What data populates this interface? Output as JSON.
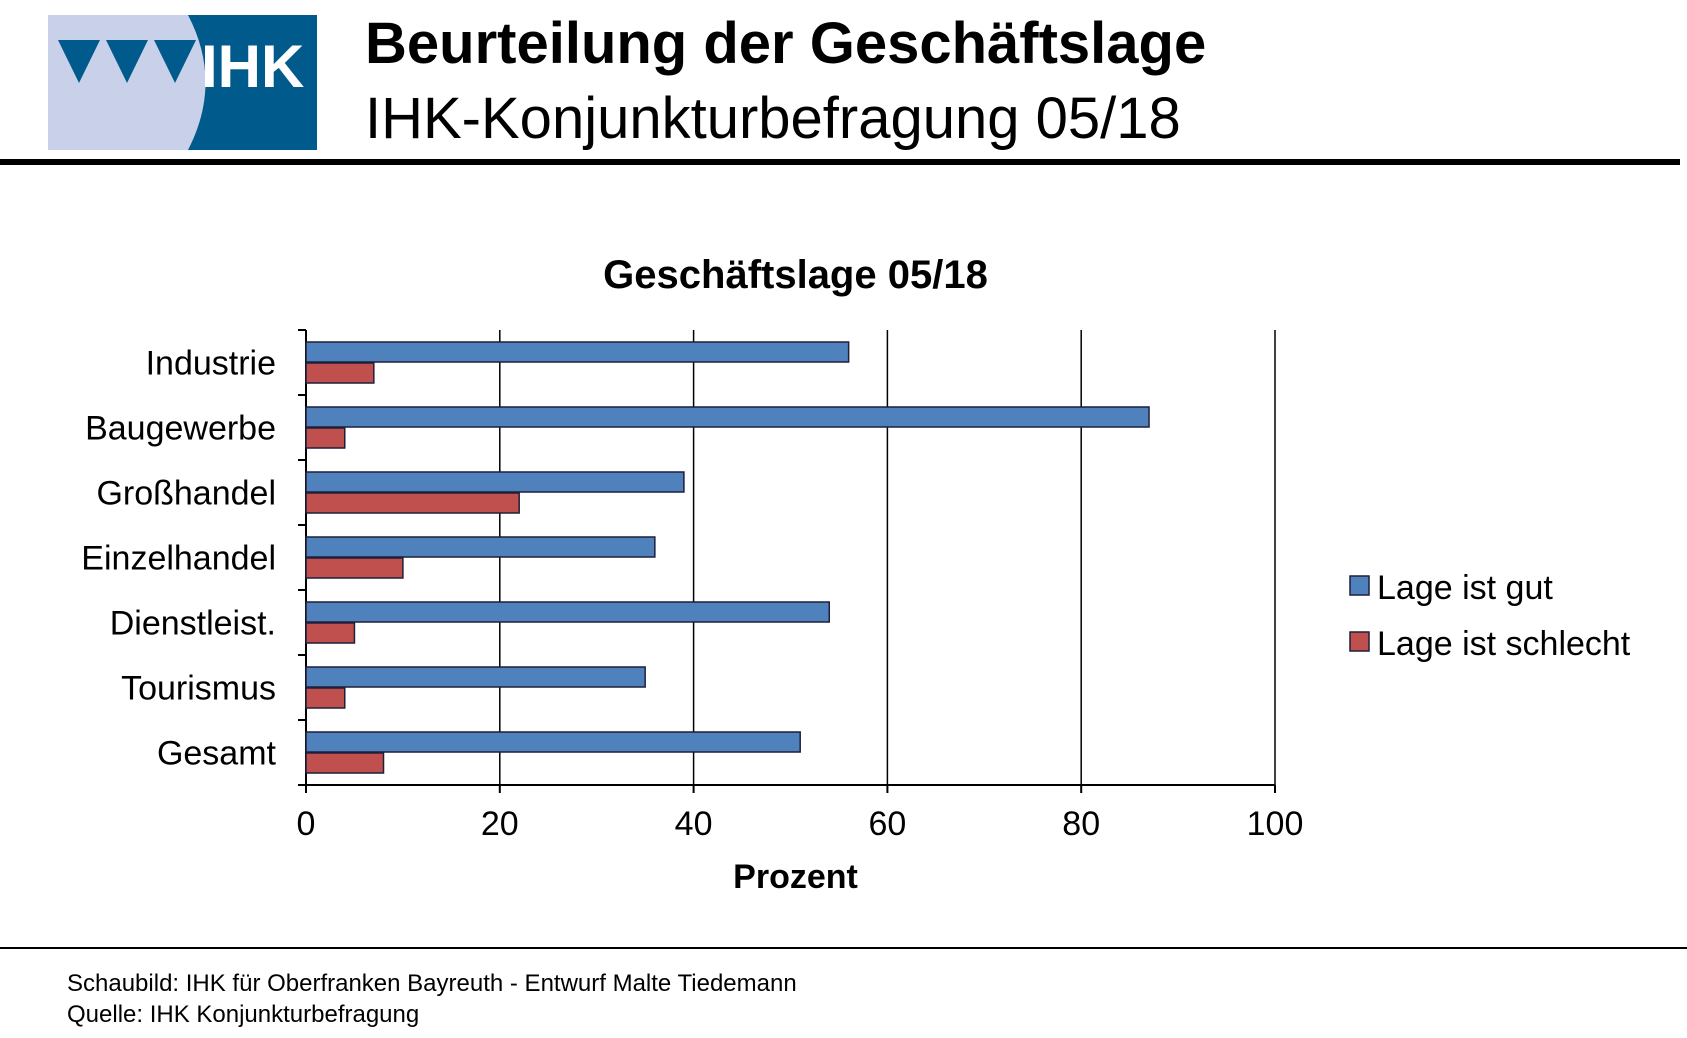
{
  "header": {
    "logo_text": "IHK",
    "title": "Beurteilung der Geschäftslage",
    "subtitle": "IHK-Konjunkturbefragung 05/18"
  },
  "colors": {
    "logo_light": "#c9d1ea",
    "logo_dark": "#005a8c",
    "series_gut": "#4f81bd",
    "series_schlecht": "#c0504d"
  },
  "chart_data": {
    "type": "bar",
    "orientation": "horizontal",
    "title": "Geschäftslage 05/18",
    "xlabel": "Prozent",
    "ylabel": "",
    "xlim": [
      0,
      100
    ],
    "xticks": [
      0,
      20,
      40,
      60,
      80,
      100
    ],
    "grid": true,
    "legend_position": "right",
    "categories": [
      "Industrie",
      "Baugewerbe",
      "Großhandel",
      "Einzelhandel",
      "Dienstleist.",
      "Tourismus",
      "Gesamt"
    ],
    "series": [
      {
        "name": "Lage ist gut",
        "values": [
          56,
          87,
          39,
          36,
          54,
          35,
          51
        ]
      },
      {
        "name": "Lage ist schlecht",
        "values": [
          7,
          4,
          22,
          10,
          5,
          4,
          8
        ]
      }
    ]
  },
  "footer": {
    "line1": "Schaubild: IHK für Oberfranken Bayreuth - Entwurf Malte Tiedemann",
    "line2": "Quelle: IHK Konjunkturbefragung"
  }
}
